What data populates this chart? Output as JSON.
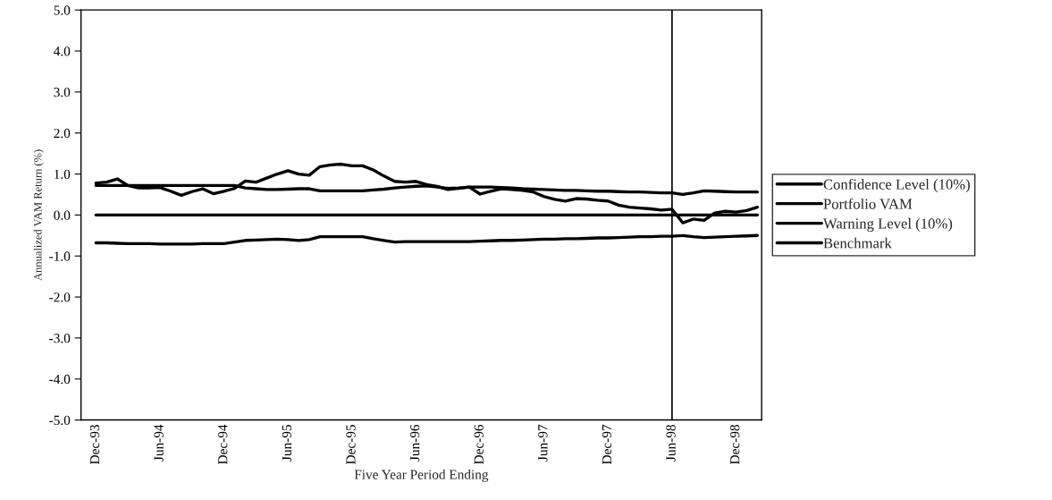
{
  "chart_data": {
    "type": "line",
    "xlabel": "Five Year Period Ending",
    "ylabel": "Annualized VAM Return (%)",
    "categories": [
      "Dec-93",
      null,
      null,
      null,
      null,
      null,
      "Jun-94",
      null,
      null,
      null,
      null,
      null,
      "Dec-94",
      null,
      null,
      null,
      null,
      null,
      "Jun-95",
      null,
      null,
      null,
      null,
      null,
      "Dec-95",
      null,
      null,
      null,
      null,
      null,
      "Jun-96",
      null,
      null,
      null,
      null,
      null,
      "Dec-96",
      null,
      null,
      null,
      null,
      null,
      "Jun-97",
      null,
      null,
      null,
      null,
      null,
      "Dec-97",
      null,
      null,
      null,
      null,
      null,
      "Jun-98",
      null,
      null,
      null,
      null,
      null,
      "Dec-98",
      null,
      null
    ],
    "series": [
      {
        "name": "Confidence Level (10%)",
        "color": "#000000",
        "values": [
          0.72,
          0.72,
          0.72,
          0.72,
          0.72,
          0.72,
          0.72,
          0.72,
          0.72,
          0.72,
          0.72,
          0.72,
          0.72,
          0.72,
          0.66,
          0.64,
          0.62,
          0.62,
          0.63,
          0.64,
          0.64,
          0.59,
          0.59,
          0.59,
          0.59,
          0.59,
          0.61,
          0.63,
          0.66,
          0.68,
          0.7,
          0.71,
          0.68,
          0.65,
          0.66,
          0.68,
          0.68,
          0.68,
          0.67,
          0.66,
          0.64,
          0.63,
          0.62,
          0.61,
          0.6,
          0.6,
          0.59,
          0.58,
          0.58,
          0.57,
          0.56,
          0.56,
          0.55,
          0.54,
          0.54,
          0.5,
          0.54,
          0.59,
          0.58,
          0.57,
          0.56,
          0.56,
          0.56
        ]
      },
      {
        "name": "Portfolio VAM",
        "color": "#000000",
        "values": [
          0.78,
          0.8,
          0.88,
          0.72,
          0.66,
          0.66,
          0.67,
          0.58,
          0.48,
          0.57,
          0.64,
          0.52,
          0.58,
          0.65,
          0.83,
          0.8,
          0.9,
          1.0,
          1.08,
          1.0,
          0.97,
          1.18,
          1.22,
          1.24,
          1.2,
          1.2,
          1.1,
          0.95,
          0.82,
          0.8,
          0.82,
          0.74,
          0.7,
          0.62,
          0.65,
          0.68,
          0.51,
          0.58,
          0.64,
          0.62,
          0.6,
          0.56,
          0.45,
          0.38,
          0.34,
          0.4,
          0.39,
          0.36,
          0.34,
          0.24,
          0.19,
          0.17,
          0.15,
          0.12,
          0.14,
          -0.19,
          -0.1,
          -0.13,
          0.05,
          0.09,
          0.07,
          0.11,
          0.19
        ]
      },
      {
        "name": "Warning Level (10%)",
        "color": "#000000",
        "values": [
          -0.68,
          -0.68,
          -0.69,
          -0.7,
          -0.7,
          -0.7,
          -0.71,
          -0.71,
          -0.71,
          -0.71,
          -0.7,
          -0.7,
          -0.7,
          -0.66,
          -0.62,
          -0.61,
          -0.6,
          -0.59,
          -0.6,
          -0.62,
          -0.6,
          -0.53,
          -0.53,
          -0.53,
          -0.53,
          -0.53,
          -0.58,
          -0.62,
          -0.66,
          -0.65,
          -0.65,
          -0.65,
          -0.65,
          -0.65,
          -0.65,
          -0.65,
          -0.64,
          -0.63,
          -0.62,
          -0.62,
          -0.61,
          -0.6,
          -0.59,
          -0.59,
          -0.58,
          -0.58,
          -0.57,
          -0.56,
          -0.56,
          -0.55,
          -0.54,
          -0.53,
          -0.53,
          -0.52,
          -0.52,
          -0.5,
          -0.53,
          -0.55,
          -0.54,
          -0.53,
          -0.52,
          -0.51,
          -0.5
        ]
      },
      {
        "name": "Benchmark",
        "color": "#000000",
        "values": [
          0,
          0,
          0,
          0,
          0,
          0,
          0,
          0,
          0,
          0,
          0,
          0,
          0,
          0,
          0,
          0,
          0,
          0,
          0,
          0,
          0,
          0,
          0,
          0,
          0,
          0,
          0,
          0,
          0,
          0,
          0,
          0,
          0,
          0,
          0,
          0,
          0,
          0,
          0,
          0,
          0,
          0,
          0,
          0,
          0,
          0,
          0,
          0,
          0,
          0,
          0,
          0,
          0,
          0,
          0,
          0,
          0,
          0,
          0,
          0,
          0,
          0,
          0
        ]
      }
    ],
    "ylim": [
      -5,
      5
    ],
    "yticks": [
      {
        "value": -5,
        "label": "-5.0"
      },
      {
        "value": -4,
        "label": "-4.0"
      },
      {
        "value": -3,
        "label": "-3.0"
      },
      {
        "value": -2,
        "label": "-2.0"
      },
      {
        "value": -1,
        "label": "-1.0"
      },
      {
        "value": 0,
        "label": "0.0"
      },
      {
        "value": 1,
        "label": "1.0"
      },
      {
        "value": 2,
        "label": "2.0"
      },
      {
        "value": 3,
        "label": "3.0"
      },
      {
        "value": 4,
        "label": "4.0"
      },
      {
        "value": 5,
        "label": "5.0"
      }
    ],
    "ref_lines": [
      {
        "axis": "x",
        "value": "Jun-98",
        "color": "#000000"
      }
    ],
    "legend": "right",
    "grid": false,
    "marker": "none",
    "line_style": "solid"
  }
}
